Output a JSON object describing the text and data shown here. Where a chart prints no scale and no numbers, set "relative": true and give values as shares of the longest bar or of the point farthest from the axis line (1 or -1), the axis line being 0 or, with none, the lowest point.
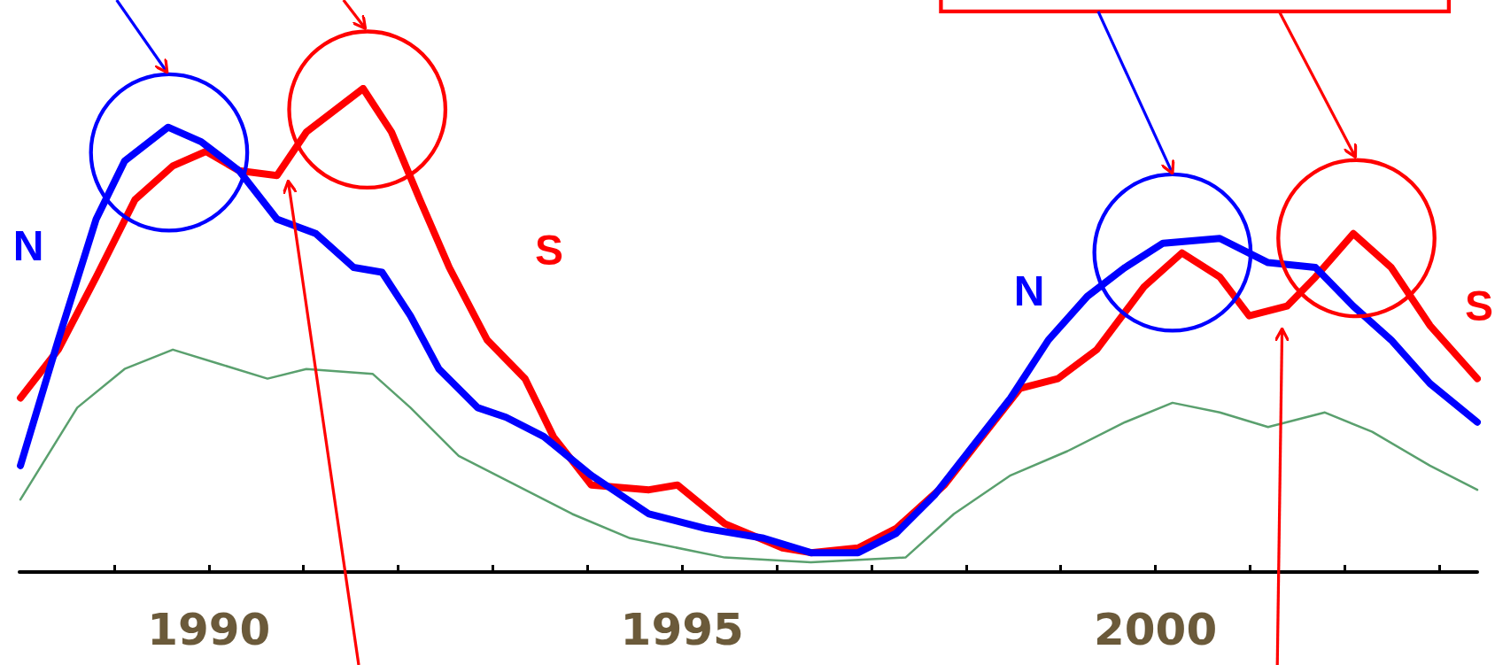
{
  "chart_data": {
    "type": "line",
    "relative": true,
    "marker": "none",
    "line_style": "solid",
    "grid": false,
    "xlim": [
      1988,
      2003.4
    ],
    "xticks": [
      {
        "value": 1989,
        "label": null
      },
      1990,
      {
        "value": 1991,
        "label": null
      },
      {
        "value": 1992,
        "label": null
      },
      {
        "value": 1993,
        "label": null
      },
      {
        "value": 1994,
        "label": null
      },
      1995,
      {
        "value": 1996,
        "label": null
      },
      {
        "value": 1997,
        "label": null
      },
      {
        "value": 1998,
        "label": null
      },
      {
        "value": 1999,
        "label": null
      },
      2000,
      {
        "value": 2001,
        "label": null
      },
      {
        "value": 2002,
        "label": null
      },
      {
        "value": 2003,
        "label": null
      }
    ],
    "series": [
      {
        "name": "N",
        "color": "#0000ff",
        "x": [
          1988.01,
          1988.41,
          1988.81,
          1989.11,
          1989.57,
          1989.92,
          1990.32,
          1990.72,
          1991.13,
          1991.53,
          1991.83,
          1992.13,
          1992.43,
          1992.84,
          1993.14,
          1993.54,
          1994.04,
          1994.65,
          1995.25,
          1995.86,
          1996.36,
          1996.86,
          1997.26,
          1997.67,
          1998.07,
          1998.47,
          1998.87,
          1999.28,
          1999.68,
          2000.08,
          2000.68,
          2001.19,
          2001.69,
          2002.09,
          2002.49,
          2002.9,
          2003.4
        ],
        "values": [
          0.22,
          0.48,
          0.73,
          0.85,
          0.92,
          0.89,
          0.83,
          0.73,
          0.7,
          0.63,
          0.62,
          0.53,
          0.42,
          0.34,
          0.32,
          0.28,
          0.2,
          0.12,
          0.09,
          0.07,
          0.04,
          0.04,
          0.08,
          0.16,
          0.26,
          0.36,
          0.48,
          0.57,
          0.63,
          0.68,
          0.69,
          0.64,
          0.63,
          0.55,
          0.48,
          0.39,
          0.31
        ]
      },
      {
        "name": "S",
        "color": "#ff0000",
        "x": [
          1988.01,
          1988.41,
          1988.81,
          1989.22,
          1989.62,
          1989.97,
          1990.32,
          1990.72,
          1991.03,
          1991.63,
          1991.93,
          1992.23,
          1992.54,
          1992.94,
          1993.34,
          1993.64,
          1994.04,
          1994.65,
          1994.95,
          1995.45,
          1996.06,
          1996.36,
          1996.86,
          1997.26,
          1997.77,
          1998.17,
          1998.57,
          1998.97,
          1999.38,
          1999.88,
          2000.28,
          2000.68,
          2000.99,
          2001.39,
          2001.69,
          2002.09,
          2002.49,
          2002.9,
          2003.4
        ],
        "values": [
          0.36,
          0.46,
          0.61,
          0.77,
          0.84,
          0.87,
          0.83,
          0.82,
          0.91,
          1.0,
          0.91,
          0.77,
          0.63,
          0.48,
          0.4,
          0.28,
          0.18,
          0.17,
          0.18,
          0.1,
          0.05,
          0.04,
          0.05,
          0.09,
          0.18,
          0.28,
          0.38,
          0.4,
          0.46,
          0.59,
          0.66,
          0.61,
          0.53,
          0.55,
          0.61,
          0.7,
          0.63,
          0.51,
          0.4
        ]
      },
      {
        "color": "#5aa06e",
        "x": [
          1988.01,
          1988.61,
          1989.11,
          1989.62,
          1990.12,
          1990.62,
          1991.03,
          1991.73,
          1992.13,
          1992.64,
          1993.24,
          1993.84,
          1994.45,
          1995.45,
          1996.36,
          1997.36,
          1997.87,
          1998.47,
          1999.07,
          1999.68,
          2000.18,
          2000.68,
          2001.19,
          2001.79,
          2002.29,
          2002.9,
          2003.4
        ],
        "values": [
          0.15,
          0.34,
          0.42,
          0.46,
          0.43,
          0.4,
          0.42,
          0.41,
          0.34,
          0.24,
          0.18,
          0.12,
          0.07,
          0.03,
          0.02,
          0.03,
          0.12,
          0.2,
          0.25,
          0.31,
          0.35,
          0.33,
          0.3,
          0.33,
          0.29,
          0.22,
          0.17
        ]
      }
    ]
  }
}
